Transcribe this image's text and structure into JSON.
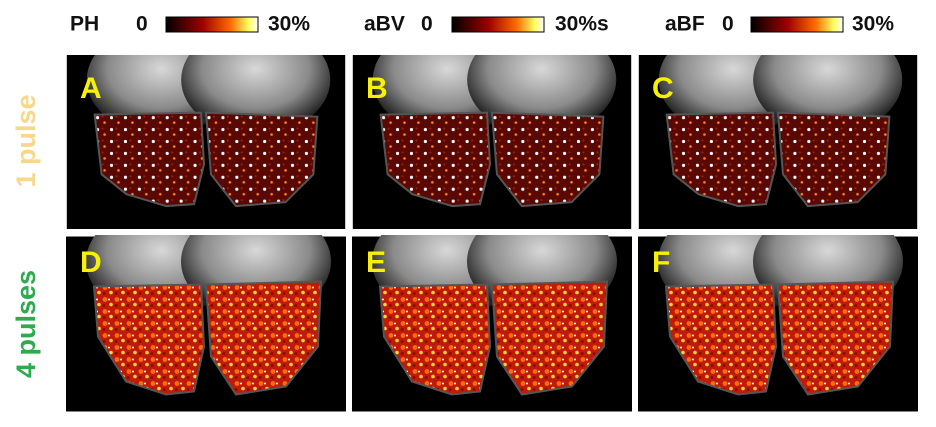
{
  "columns": [
    {
      "label": "PH",
      "min": "0",
      "max": "30%"
    },
    {
      "label": "aBV",
      "min": "0",
      "max": "30%s"
    },
    {
      "label": "aBF",
      "min": "0",
      "max": "30%"
    }
  ],
  "rows": [
    {
      "label": "1 pulse",
      "panels": [
        "A",
        "B",
        "C"
      ]
    },
    {
      "label": "4 pulses",
      "panels": [
        "D",
        "E",
        "F"
      ]
    }
  ]
}
